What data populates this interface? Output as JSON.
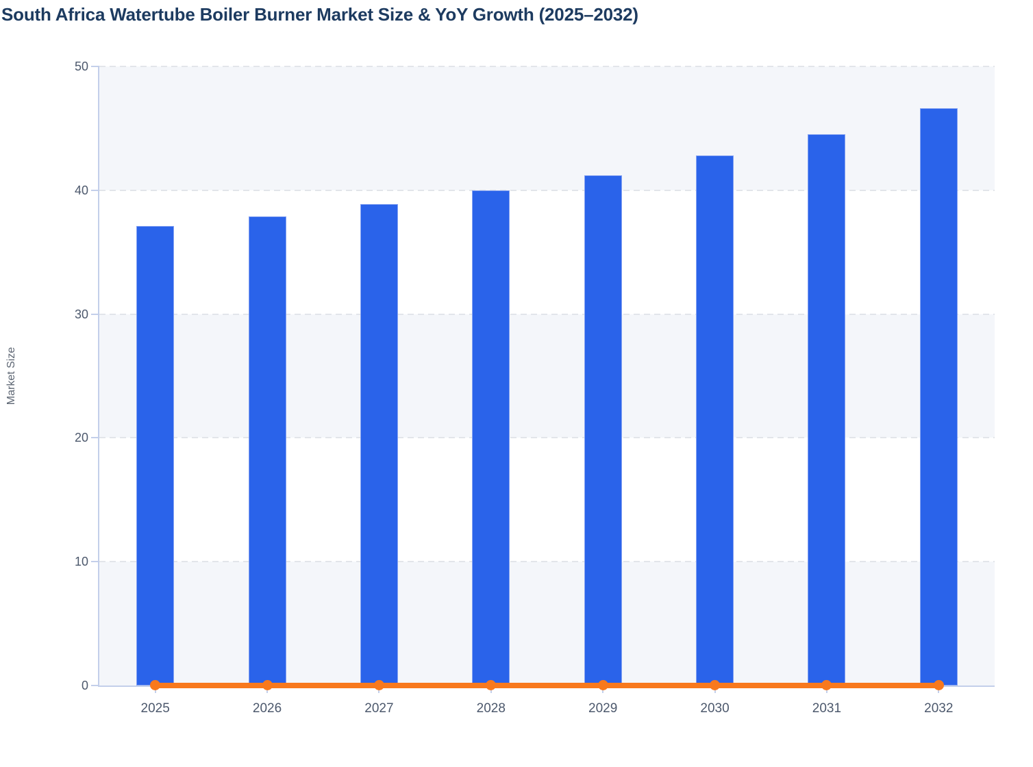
{
  "page_title": "South Africa Watertube Boiler Burner Market Size & YoY Growth (2025–2032)",
  "chart_data": {
    "type": "bar",
    "subtype": "columns with flat line overlay",
    "title": "South Africa Watertube Boiler Burner Market Size & YoY Growth (2025–2032)",
    "categories": [
      "2025",
      "2026",
      "2027",
      "2028",
      "2029",
      "2030",
      "2031",
      "2032"
    ],
    "series": [
      {
        "name": "Market Size",
        "type": "bar",
        "values": [
          37.1,
          37.9,
          38.9,
          40.0,
          41.2,
          42.8,
          44.5,
          46.6
        ]
      },
      {
        "name": "YoY Growth",
        "type": "line",
        "values": [
          0.02,
          0.02,
          0.03,
          0.03,
          0.03,
          0.04,
          0.04,
          0.05
        ],
        "note": "renders as a flat orange line with circular markers at ~0 on the left axis"
      }
    ],
    "xlabel": "",
    "ylabel": "Market Size",
    "ylim": [
      0,
      50
    ],
    "yticks": [
      0,
      10,
      20,
      30,
      40,
      50
    ],
    "grid": "horizontal dashed gridlines at each y tick",
    "shaded_bands": [
      [
        0,
        10
      ],
      [
        20,
        30
      ],
      [
        40,
        50
      ]
    ],
    "legend": "none"
  },
  "colors": {
    "bar": "#2a63ea",
    "bar_border": "#86a3f2",
    "line": "#f8791d",
    "title_text": "#1d3b60",
    "tick_label": "#4c586c",
    "axis_title": "#5d6673",
    "axis_line": "#c3cfea",
    "gridline": "#e2e5ea",
    "band_fill": "#f4f6fa",
    "background": "#ffffff"
  }
}
